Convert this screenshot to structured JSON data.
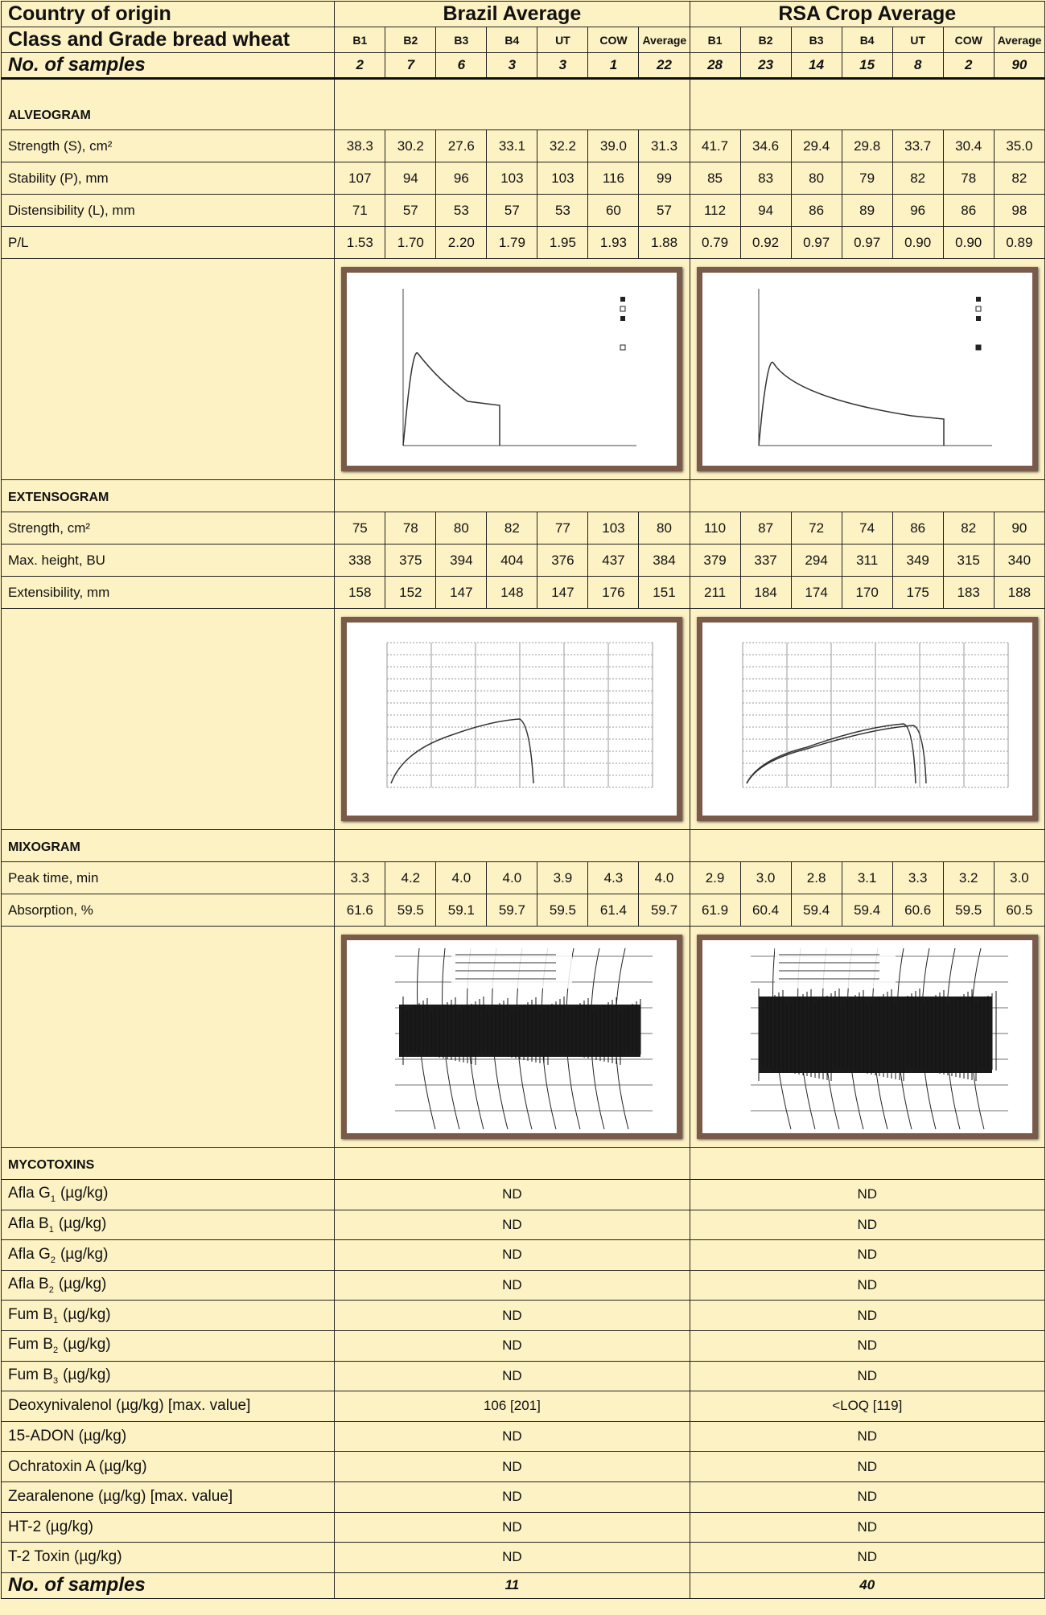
{
  "header": {
    "country_label": "Country of origin",
    "groups": [
      "Brazil Average",
      "RSA Crop Average"
    ],
    "class_label": "Class and Grade bread wheat",
    "classes": [
      "B1",
      "B2",
      "B3",
      "B4",
      "UT",
      "COW",
      "Average"
    ],
    "samples_label": "No. of samples",
    "samples": [
      [
        "2",
        "7",
        "6",
        "3",
        "3",
        "1",
        "22"
      ],
      [
        "28",
        "23",
        "14",
        "15",
        "8",
        "2",
        "90"
      ]
    ]
  },
  "sections": [
    {
      "title": "ALVEOGRAM",
      "rows": [
        {
          "label": "Strength (S), cm²",
          "values": [
            [
              "38.3",
              "30.2",
              "27.6",
              "33.1",
              "32.2",
              "39.0",
              "31.3"
            ],
            [
              "41.7",
              "34.6",
              "29.4",
              "29.8",
              "33.7",
              "30.4",
              "35.0"
            ]
          ]
        },
        {
          "label": "Stability (P), mm",
          "values": [
            [
              "107",
              "94",
              "96",
              "103",
              "103",
              "116",
              "99"
            ],
            [
              "85",
              "83",
              "80",
              "79",
              "82",
              "78",
              "82"
            ]
          ]
        },
        {
          "label": "Distensibility (L), mm",
          "values": [
            [
              "71",
              "57",
              "53",
              "57",
              "53",
              "60",
              "57"
            ],
            [
              "112",
              "94",
              "86",
              "89",
              "96",
              "86",
              "98"
            ]
          ]
        },
        {
          "label": "P/L",
          "values": [
            [
              "1.53",
              "1.70",
              "2.20",
              "1.79",
              "1.95",
              "1.93",
              "1.88"
            ],
            [
              "0.79",
              "0.92",
              "0.97",
              "0.97",
              "0.90",
              "0.90",
              "0.89"
            ]
          ]
        }
      ]
    },
    {
      "title": "EXTENSOGRAM",
      "rows": [
        {
          "label": "Strength, cm²",
          "values": [
            [
              "75",
              "78",
              "80",
              "82",
              "77",
              "103",
              "80"
            ],
            [
              "110",
              "87",
              "72",
              "74",
              "86",
              "82",
              "90"
            ]
          ]
        },
        {
          "label": "Max. height, BU",
          "values": [
            [
              "338",
              "375",
              "394",
              "404",
              "376",
              "437",
              "384"
            ],
            [
              "379",
              "337",
              "294",
              "311",
              "349",
              "315",
              "340"
            ]
          ]
        },
        {
          "label": "Extensibility, mm",
          "values": [
            [
              "158",
              "152",
              "147",
              "148",
              "147",
              "176",
              "151"
            ],
            [
              "211",
              "184",
              "174",
              "170",
              "175",
              "183",
              "188"
            ]
          ]
        }
      ]
    },
    {
      "title": "MIXOGRAM",
      "rows": [
        {
          "label": "Peak time, min",
          "values": [
            [
              "3.3",
              "4.2",
              "4.0",
              "4.0",
              "3.9",
              "4.3",
              "4.0"
            ],
            [
              "2.9",
              "3.0",
              "2.8",
              "3.1",
              "3.3",
              "3.2",
              "3.0"
            ]
          ]
        },
        {
          "label": "Absorption, %",
          "values": [
            [
              "61.6",
              "59.5",
              "59.1",
              "59.7",
              "59.5",
              "61.4",
              "59.7"
            ],
            [
              "61.9",
              "60.4",
              "59.4",
              "59.4",
              "60.6",
              "59.5",
              "60.5"
            ]
          ]
        }
      ]
    }
  ],
  "mycotoxins": {
    "title": "MYCOTOXINS",
    "rows": [
      {
        "label": "Afla G",
        "sub": "1",
        "unit": "(µg/kg)",
        "values": [
          "ND",
          "ND"
        ]
      },
      {
        "label": "Afla B",
        "sub": "1",
        "unit": "(µg/kg)",
        "values": [
          "ND",
          "ND"
        ]
      },
      {
        "label": "Afla G",
        "sub": "2",
        "unit": "(µg/kg)",
        "values": [
          "ND",
          "ND"
        ]
      },
      {
        "label": "Afla B",
        "sub": "2",
        "unit": "(µg/kg)",
        "values": [
          "ND",
          "ND"
        ]
      },
      {
        "label": "Fum B",
        "sub": "1",
        "unit": "(µg/kg)",
        "values": [
          "ND",
          "ND"
        ]
      },
      {
        "label": "Fum B",
        "sub": "2",
        "unit": "(µg/kg)",
        "values": [
          "ND",
          "ND"
        ]
      },
      {
        "label": "Fum B",
        "sub": "3",
        "unit": "(µg/kg)",
        "values": [
          "ND",
          "ND"
        ]
      },
      {
        "label": "Deoxynivalenol (µg/kg) [max. value]",
        "values": [
          "106 [201]",
          "<LOQ [119]"
        ]
      },
      {
        "label": "15-ADON (µg/kg)",
        "values": [
          "ND",
          "ND"
        ]
      },
      {
        "label": "Ochratoxin A (µg/kg)",
        "values": [
          "ND",
          "ND"
        ]
      },
      {
        "label": "Zearalenone (µg/kg) [max. value]",
        "values": [
          "ND",
          "ND"
        ]
      },
      {
        "label": "HT-2 (µg/kg)",
        "values": [
          "ND",
          "ND"
        ]
      },
      {
        "label": "T-2 Toxin (µg/kg)",
        "values": [
          "ND",
          "ND"
        ]
      }
    ]
  },
  "footer": {
    "samples_label": "No. of samples",
    "samples": [
      "11",
      "40"
    ]
  }
}
